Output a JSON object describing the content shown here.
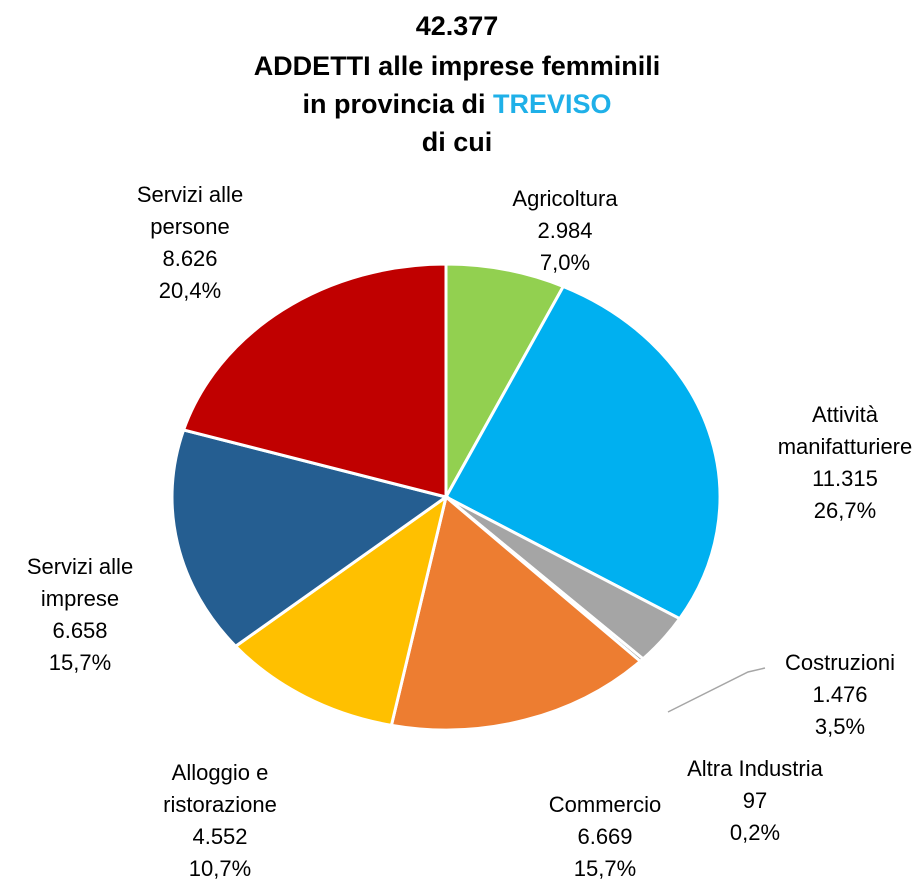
{
  "chart_data": {
    "type": "pie",
    "title": {
      "total": "42.377",
      "line1": "ADDETTI alle imprese femminili",
      "line2": "in provincia di",
      "highlight": "TREVISO",
      "line3": "di cui"
    },
    "categories": [
      [
        "Agricoltura"
      ],
      [
        "Attività",
        "manifatturiere"
      ],
      [
        "Costruzioni"
      ],
      [
        "Altra Industria"
      ],
      [
        "Commercio"
      ],
      [
        "Alloggio e",
        "ristorazione"
      ],
      [
        "Servizi alle",
        "imprese"
      ],
      [
        "Servizi alle",
        "persone"
      ]
    ],
    "values": [
      2984,
      11315,
      1476,
      97,
      6669,
      4552,
      6658,
      8626
    ],
    "value_labels": [
      "2.984",
      "11.315",
      "1.476",
      "97",
      "6.669",
      "4.552",
      "6.658",
      "8.626"
    ],
    "percent_labels": [
      "7,0%",
      "26,7%",
      "3,5%",
      "0,2%",
      "15,7%",
      "10,7%",
      "15,7%",
      "20,4%"
    ],
    "colors": [
      "#92d050",
      "#00b0f0",
      "#a5a5a5",
      "#7f7f7f",
      "#ed7d31",
      "#ffc000",
      "#255e91",
      "#c00000"
    ],
    "highlight_color": "#1fb0e8"
  }
}
